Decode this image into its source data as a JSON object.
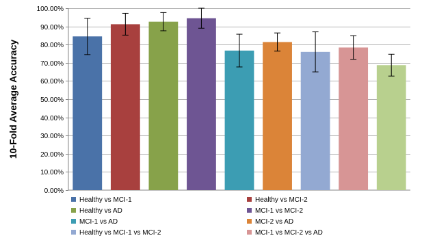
{
  "chart_data": {
    "type": "bar",
    "title": "",
    "xlabel": "",
    "ylabel": "10-Fold Average Accuracy",
    "ylim": [
      0,
      100
    ],
    "ytick_step": 10,
    "ytick_format": "percent_2dp",
    "grid": "horizontal",
    "legend_position": "bottom",
    "legend_columns": 2,
    "categories": [
      "Healthy vs MCI-1",
      "Healthy vs MCI-2",
      "Healthy vs AD",
      "MCI-1 vs MCI-2",
      "MCI-1 vs AD",
      "MCI-2 vs AD",
      "Healthy vs MCI-1 vs MCI-2",
      "MCI-1 vs MCI-2 vs AD",
      ""
    ],
    "values": [
      84.5,
      91.2,
      92.6,
      94.5,
      76.7,
      81.4,
      76.0,
      78.4,
      68.7
    ],
    "errors": [
      10.0,
      6.0,
      5.0,
      5.5,
      9.0,
      5.0,
      11.0,
      6.5,
      6.0
    ],
    "colors": [
      "#4a72a8",
      "#a8403e",
      "#87a24a",
      "#6e5593",
      "#3c9db3",
      "#db8438",
      "#93a9d2",
      "#d79595",
      "#b8d08e"
    ],
    "legend_show_last": false
  }
}
